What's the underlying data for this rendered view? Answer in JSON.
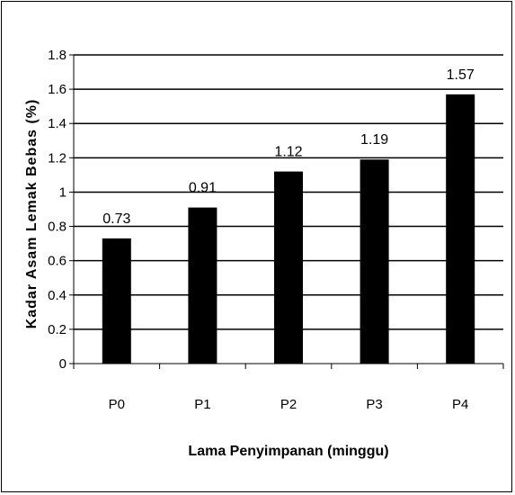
{
  "chart_data": {
    "type": "bar",
    "categories": [
      "P0",
      "P1",
      "P2",
      "P3",
      "P4"
    ],
    "values": [
      0.73,
      0.91,
      1.12,
      1.19,
      1.57
    ],
    "data_labels": [
      "0.73",
      "0.91",
      "1.12",
      "1.19",
      "1.57"
    ],
    "title": "",
    "xlabel": "Lama Penyimpanan (minggu)",
    "ylabel": "Kadar Asam Lemak Bebas (%)",
    "ylim": [
      0,
      1.8
    ],
    "yticks": [
      "0",
      "0.2",
      "0.4",
      "0.6",
      "0.8",
      "1",
      "1.2",
      "1.4",
      "1.6",
      "1.8"
    ],
    "grid": true,
    "legend": "none",
    "bar_color": "#000000"
  }
}
